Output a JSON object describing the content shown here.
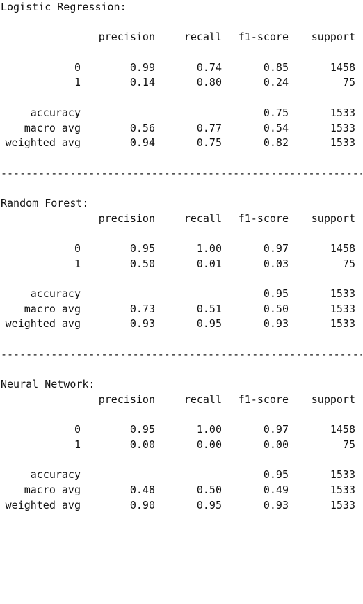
{
  "headers": {
    "precision": "precision",
    "recall": "recall",
    "f1": "f1-score",
    "support": "support"
  },
  "separator": "-------------------------------------------------------------------------",
  "reports": [
    {
      "title": "Logistic Regression:",
      "rows": [
        {
          "label": "0",
          "precision": "0.99",
          "recall": "0.74",
          "f1": "0.85",
          "support": "1458"
        },
        {
          "label": "1",
          "precision": "0.14",
          "recall": "0.80",
          "f1": "0.24",
          "support": "75"
        }
      ],
      "accuracy": {
        "label": "accuracy",
        "f1": "0.75",
        "support": "1533"
      },
      "macro": {
        "label": "macro avg",
        "precision": "0.56",
        "recall": "0.77",
        "f1": "0.54",
        "support": "1533"
      },
      "weighted": {
        "label": "weighted avg",
        "precision": "0.94",
        "recall": "0.75",
        "f1": "0.82",
        "support": "1533"
      }
    },
    {
      "title": "Random Forest:",
      "rows": [
        {
          "label": "0",
          "precision": "0.95",
          "recall": "1.00",
          "f1": "0.97",
          "support": "1458"
        },
        {
          "label": "1",
          "precision": "0.50",
          "recall": "0.01",
          "f1": "0.03",
          "support": "75"
        }
      ],
      "accuracy": {
        "label": "accuracy",
        "f1": "0.95",
        "support": "1533"
      },
      "macro": {
        "label": "macro avg",
        "precision": "0.73",
        "recall": "0.51",
        "f1": "0.50",
        "support": "1533"
      },
      "weighted": {
        "label": "weighted avg",
        "precision": "0.93",
        "recall": "0.95",
        "f1": "0.93",
        "support": "1533"
      }
    },
    {
      "title": "Neural Network:",
      "rows": [
        {
          "label": "0",
          "precision": "0.95",
          "recall": "1.00",
          "f1": "0.97",
          "support": "1458"
        },
        {
          "label": "1",
          "precision": "0.00",
          "recall": "0.00",
          "f1": "0.00",
          "support": "75"
        }
      ],
      "accuracy": {
        "label": "accuracy",
        "f1": "0.95",
        "support": "1533"
      },
      "macro": {
        "label": "macro avg",
        "precision": "0.48",
        "recall": "0.50",
        "f1": "0.49",
        "support": "1533"
      },
      "weighted": {
        "label": "weighted avg",
        "precision": "0.90",
        "recall": "0.95",
        "f1": "0.93",
        "support": "1533"
      }
    }
  ]
}
